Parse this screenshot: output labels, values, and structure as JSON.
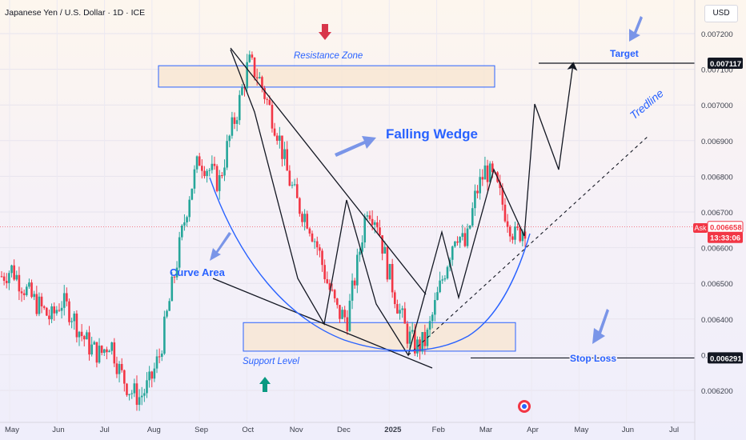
{
  "header": {
    "title": "Japanese Yen / U.S. Dollar · 1D · ICE",
    "currency": "USD"
  },
  "price_labels": {
    "target": "0.007117",
    "current": "0.006658",
    "timer": "13:33:06",
    "ask": "Ask",
    "stop": "0.006291"
  },
  "annotations": {
    "resistance": "Resistance Zone",
    "support": "Support Level",
    "target": "Target",
    "stop_loss": "Stop Loss",
    "wedge": "Falling Wedge",
    "curve": "Curve Area",
    "tredline": "Tredline"
  },
  "colors": {
    "up": "#26a69a",
    "down": "#f23645",
    "annotation_blue": "#2962ff",
    "zone_fill": "#f8e6cf",
    "zone_border": "#2962ff",
    "line_black": "#131722"
  },
  "chart_data": {
    "type": "candlestick",
    "y_ticks": [
      "0.007200",
      "0.007100",
      "0.007000",
      "0.006900",
      "0.006800",
      "0.006700",
      "0.006600",
      "0.006500",
      "0.006400",
      "0.006300",
      "0.006200"
    ],
    "x_ticks": [
      "May",
      "Jun",
      "Jul",
      "Aug",
      "Sep",
      "Oct",
      "Nov",
      "Dec",
      "2025",
      "Feb",
      "Mar",
      "Apr",
      "May",
      "Jun",
      "Jul"
    ],
    "ylim": [
      0.00616,
      0.00725
    ],
    "resistance_zone": [
      0.00705,
      0.00711
    ],
    "support_zone": [
      0.00631,
      0.00639
    ],
    "target": 0.007117,
    "stop_loss": 0.006291,
    "current": 0.006658,
    "path_closes": [
      0.00652,
      0.00654,
      0.0065,
      0.00646,
      0.00643,
      0.0064,
      0.00645,
      0.00642,
      0.00636,
      0.00632,
      0.0063,
      0.00634,
      0.00625,
      0.0062,
      0.00618,
      0.00622,
      0.0063,
      0.00645,
      0.0066,
      0.00675,
      0.00685,
      0.00682,
      0.00678,
      0.0069,
      0.007,
      0.00712,
      0.00708,
      0.007,
      0.00692,
      0.0068,
      0.00672,
      0.00668,
      0.0066,
      0.0065,
      0.00642,
      0.0064,
      0.00655,
      0.00672,
      0.00668,
      0.00655,
      0.00645,
      0.00636,
      0.00632,
      0.00634,
      0.00645,
      0.00655,
      0.00665,
      0.0066,
      0.00675,
      0.00682,
      0.00678,
      0.0067,
      0.00663,
      0.00666
    ]
  }
}
